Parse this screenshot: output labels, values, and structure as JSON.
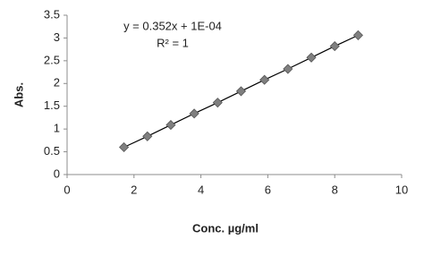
{
  "chart_data": {
    "type": "scatter",
    "x_label": "Conc. µg/ml",
    "y_label": "Abs.",
    "annotations": [
      "y = 0.352x + 1E-04",
      "R² = 1"
    ],
    "x": [
      1.7,
      2.4,
      3.1,
      3.8,
      4.5,
      5.2,
      5.9,
      6.6,
      7.3,
      8.0,
      8.7
    ],
    "series": [
      {
        "name": "Abs.",
        "color": "#7f7f7f",
        "values": [
          0.6,
          0.84,
          1.09,
          1.34,
          1.58,
          1.83,
          2.08,
          2.32,
          2.57,
          2.82,
          3.06
        ]
      }
    ],
    "trendline": true,
    "xlim": [
      0,
      10
    ],
    "xticks": [
      0,
      2,
      4,
      6,
      8,
      10
    ],
    "ylim": [
      0,
      3.5
    ],
    "yticks": [
      0,
      0.5,
      1,
      1.5,
      2,
      2.5,
      3,
      3.5
    ],
    "grid": false
  }
}
